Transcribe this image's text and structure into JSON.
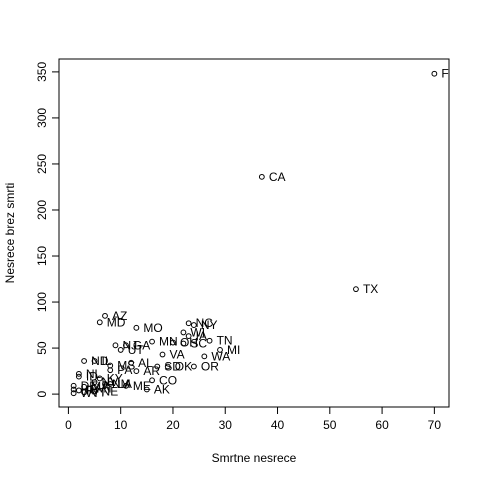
{
  "chart_data": {
    "type": "scatter",
    "title": "",
    "xlabel": "Smrtne nesrece",
    "ylabel": "Nesrece brez smrti",
    "xlim": [
      -1.8,
      72.8
    ],
    "ylim": [
      -14,
      364
    ],
    "xticks": [
      0,
      10,
      20,
      30,
      40,
      50,
      60,
      70
    ],
    "yticks": [
      0,
      50,
      100,
      150,
      200,
      250,
      300,
      350
    ],
    "grid": false,
    "legend": "none",
    "point_color": "#000000",
    "points": [
      {
        "label": "F",
        "x": 70,
        "y": 348
      },
      {
        "label": "CA",
        "x": 37,
        "y": 236
      },
      {
        "label": "TX",
        "x": 55,
        "y": 114
      },
      {
        "label": "AZ",
        "x": 7,
        "y": 85
      },
      {
        "label": "MD",
        "x": 6,
        "y": 78
      },
      {
        "label": "MO",
        "x": 13,
        "y": 72
      },
      {
        "label": "NC",
        "x": 23,
        "y": 77
      },
      {
        "label": "NY",
        "x": 24,
        "y": 75
      },
      {
        "label": "WI",
        "x": 22,
        "y": 67
      },
      {
        "label": "IA",
        "x": 23,
        "y": 63
      },
      {
        "label": "TN",
        "x": 27,
        "y": 58
      },
      {
        "label": "MN",
        "x": 16,
        "y": 57
      },
      {
        "label": "OH",
        "x": 20,
        "y": 56
      },
      {
        "label": "SC",
        "x": 22,
        "y": 55
      },
      {
        "label": "GA",
        "x": 11,
        "y": 53
      },
      {
        "label": "NJ",
        "x": 9,
        "y": 53
      },
      {
        "label": "UT",
        "x": 10,
        "y": 48
      },
      {
        "label": "MI",
        "x": 29,
        "y": 48
      },
      {
        "label": "VA",
        "x": 18,
        "y": 43
      },
      {
        "label": "WA",
        "x": 26,
        "y": 41
      },
      {
        "label": "ND",
        "x": 3,
        "y": 36
      },
      {
        "label": "IL",
        "x": 5,
        "y": 36
      },
      {
        "label": "AL",
        "x": 12,
        "y": 34
      },
      {
        "label": "MS",
        "x": 8,
        "y": 31
      },
      {
        "label": "OK",
        "x": 19,
        "y": 30
      },
      {
        "label": "SD",
        "x": 17,
        "y": 30
      },
      {
        "label": "OR",
        "x": 24,
        "y": 30
      },
      {
        "label": "PA",
        "x": 8,
        "y": 26
      },
      {
        "label": "AR",
        "x": 13,
        "y": 25
      },
      {
        "label": "NL",
        "x": 2,
        "y": 22
      },
      {
        "label": "ID",
        "x": 2,
        "y": 19
      },
      {
        "label": "KY",
        "x": 6,
        "y": 17
      },
      {
        "label": "CO",
        "x": 16,
        "y": 15
      },
      {
        "label": "NV",
        "x": 5,
        "y": 13
      },
      {
        "label": "NM",
        "x": 7,
        "y": 11
      },
      {
        "label": "LA",
        "x": 8,
        "y": 11
      },
      {
        "label": "ME",
        "x": 11,
        "y": 9
      },
      {
        "label": "DE",
        "x": 1,
        "y": 9
      },
      {
        "label": "MA",
        "x": 3,
        "y": 8
      },
      {
        "label": "MT",
        "x": 4,
        "y": 6
      },
      {
        "label": "HI",
        "x": 1,
        "y": 5
      },
      {
        "label": "AK",
        "x": 15,
        "y": 5
      },
      {
        "label": "RI",
        "x": 2,
        "y": 4
      },
      {
        "label": "VT",
        "x": 3,
        "y": 2
      },
      {
        "label": "NE",
        "x": 5,
        "y": 3
      },
      {
        "label": "WY",
        "x": 1,
        "y": 1
      }
    ]
  }
}
